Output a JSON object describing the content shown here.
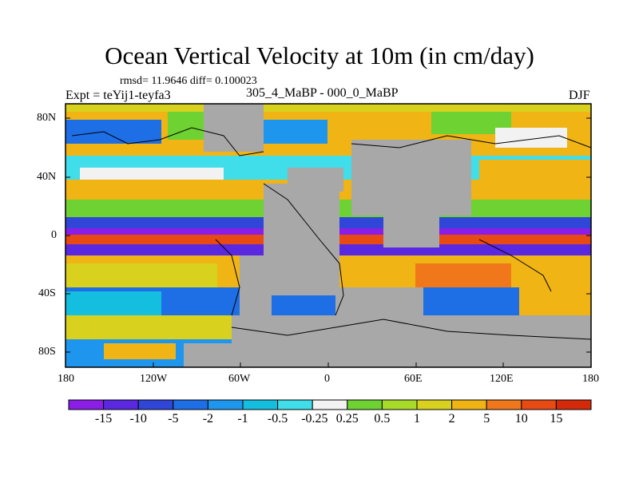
{
  "title": "Ocean Vertical Velocity at 10m (in cm/day)",
  "stats": "rmsd= 11.9646 diff= 0.100023",
  "left_label": "Expt = teYij1-teyfa3",
  "center_label": "305_4_MaBP - 000_0_MaBP",
  "right_label": "DJF",
  "lat_ticks": [
    "80N",
    "40N",
    "0",
    "40S",
    "80S"
  ],
  "lon_ticks": [
    "180",
    "120W",
    "60W",
    "0",
    "60E",
    "120E",
    "180"
  ],
  "colorbar": {
    "labels": [
      "-15",
      "-10",
      "-5",
      "-2",
      "-1",
      "-0.5",
      "-0.25",
      "0.25",
      "0.5",
      "1",
      "2",
      "5",
      "10",
      "15"
    ],
    "colors": [
      "#8a1ee6",
      "#5a28e0",
      "#2f46d8",
      "#1e6ee6",
      "#1e96ee",
      "#14bede",
      "#40ddea",
      "#f2f2f2",
      "#6ed232",
      "#a8da2a",
      "#d8d21e",
      "#f0b414",
      "#f0781a",
      "#e84a14",
      "#d42a0a"
    ]
  },
  "land_color": "#a8a8a8"
}
